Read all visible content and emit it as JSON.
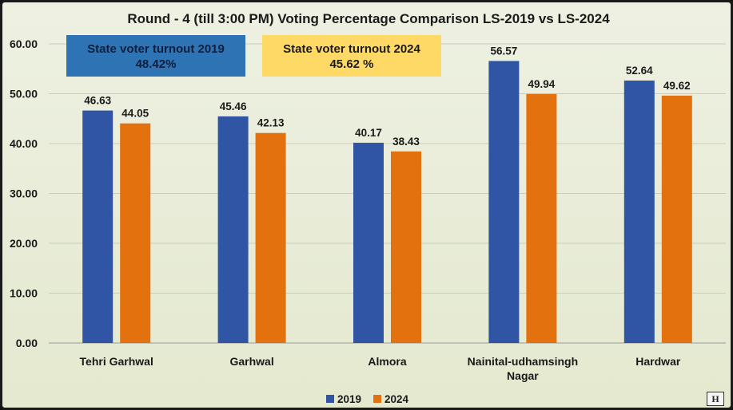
{
  "chart_data": {
    "type": "bar",
    "title": "Round - 4 (till 3:00 PM) Voting Percentage Comparison LS-2019 vs LS-2024",
    "categories": [
      [
        "Tehri Garhwal"
      ],
      [
        "Garhwal"
      ],
      [
        "Almora"
      ],
      [
        "Nainital-udhamsingh",
        "Nagar"
      ],
      [
        "Hardwar"
      ]
    ],
    "series": [
      {
        "name": "2019",
        "color": "#2f55a4",
        "values": [
          46.63,
          45.46,
          40.17,
          56.57,
          52.64
        ]
      },
      {
        "name": "2024",
        "color": "#e3720e",
        "values": [
          44.05,
          42.13,
          38.43,
          49.94,
          49.62
        ]
      }
    ],
    "ylim": [
      0,
      60
    ],
    "yticks": [
      "0.00",
      "10.00",
      "20.00",
      "30.00",
      "40.00",
      "50.00",
      "60.00"
    ],
    "grid": true,
    "legend": "bottom",
    "value_labels": true
  },
  "annotations": {
    "turnout_2019": {
      "line1": "State voter turnout 2019",
      "line2": "48.42%"
    },
    "turnout_2024": {
      "line1": "State voter turnout 2024",
      "line2": "45.62  %"
    }
  },
  "watermark": {
    "text": "H"
  }
}
